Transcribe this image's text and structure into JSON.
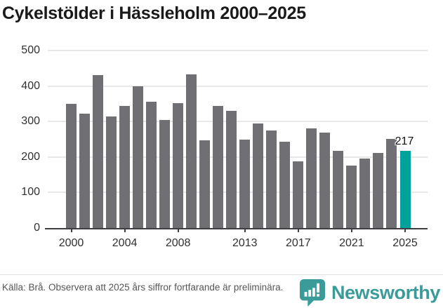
{
  "title": "Cykelstölder i Hässleholm 2000–2025",
  "chart_data": {
    "type": "bar",
    "title": "Cykelstölder i Hässleholm 2000–2025",
    "x": [
      2000,
      2001,
      2002,
      2003,
      2004,
      2005,
      2006,
      2007,
      2008,
      2009,
      2010,
      2011,
      2012,
      2013,
      2014,
      2015,
      2016,
      2017,
      2018,
      2019,
      2020,
      2021,
      2022,
      2023,
      2024,
      2025
    ],
    "values": [
      349,
      323,
      430,
      314,
      343,
      399,
      355,
      305,
      352,
      433,
      248,
      344,
      330,
      250,
      295,
      275,
      243,
      187,
      281,
      269,
      218,
      176,
      196,
      211,
      252,
      217
    ],
    "xlabel": "",
    "ylabel": "",
    "ylim": [
      0,
      500
    ],
    "yticks": [
      0,
      100,
      200,
      300,
      400,
      500
    ],
    "xticks": [
      2000,
      2004,
      2008,
      2013,
      2017,
      2021,
      2025
    ],
    "grid": true,
    "legend": false,
    "highlight": {
      "year": 2025,
      "value": 217,
      "label": "217"
    }
  },
  "footer": {
    "source_text": "Källa: Brå. Observera att 2025 års siffror fortfarande är preliminära.",
    "brand": "Newsworthy"
  },
  "colors": {
    "bar": "#706F74",
    "highlight": "#00A29B",
    "grid": "#E8E8E8",
    "axis": "#3F3F43",
    "title": "#1A1A1A",
    "tick_label": "#303030",
    "source_text": "#555555",
    "brand": "#3A9B99"
  }
}
